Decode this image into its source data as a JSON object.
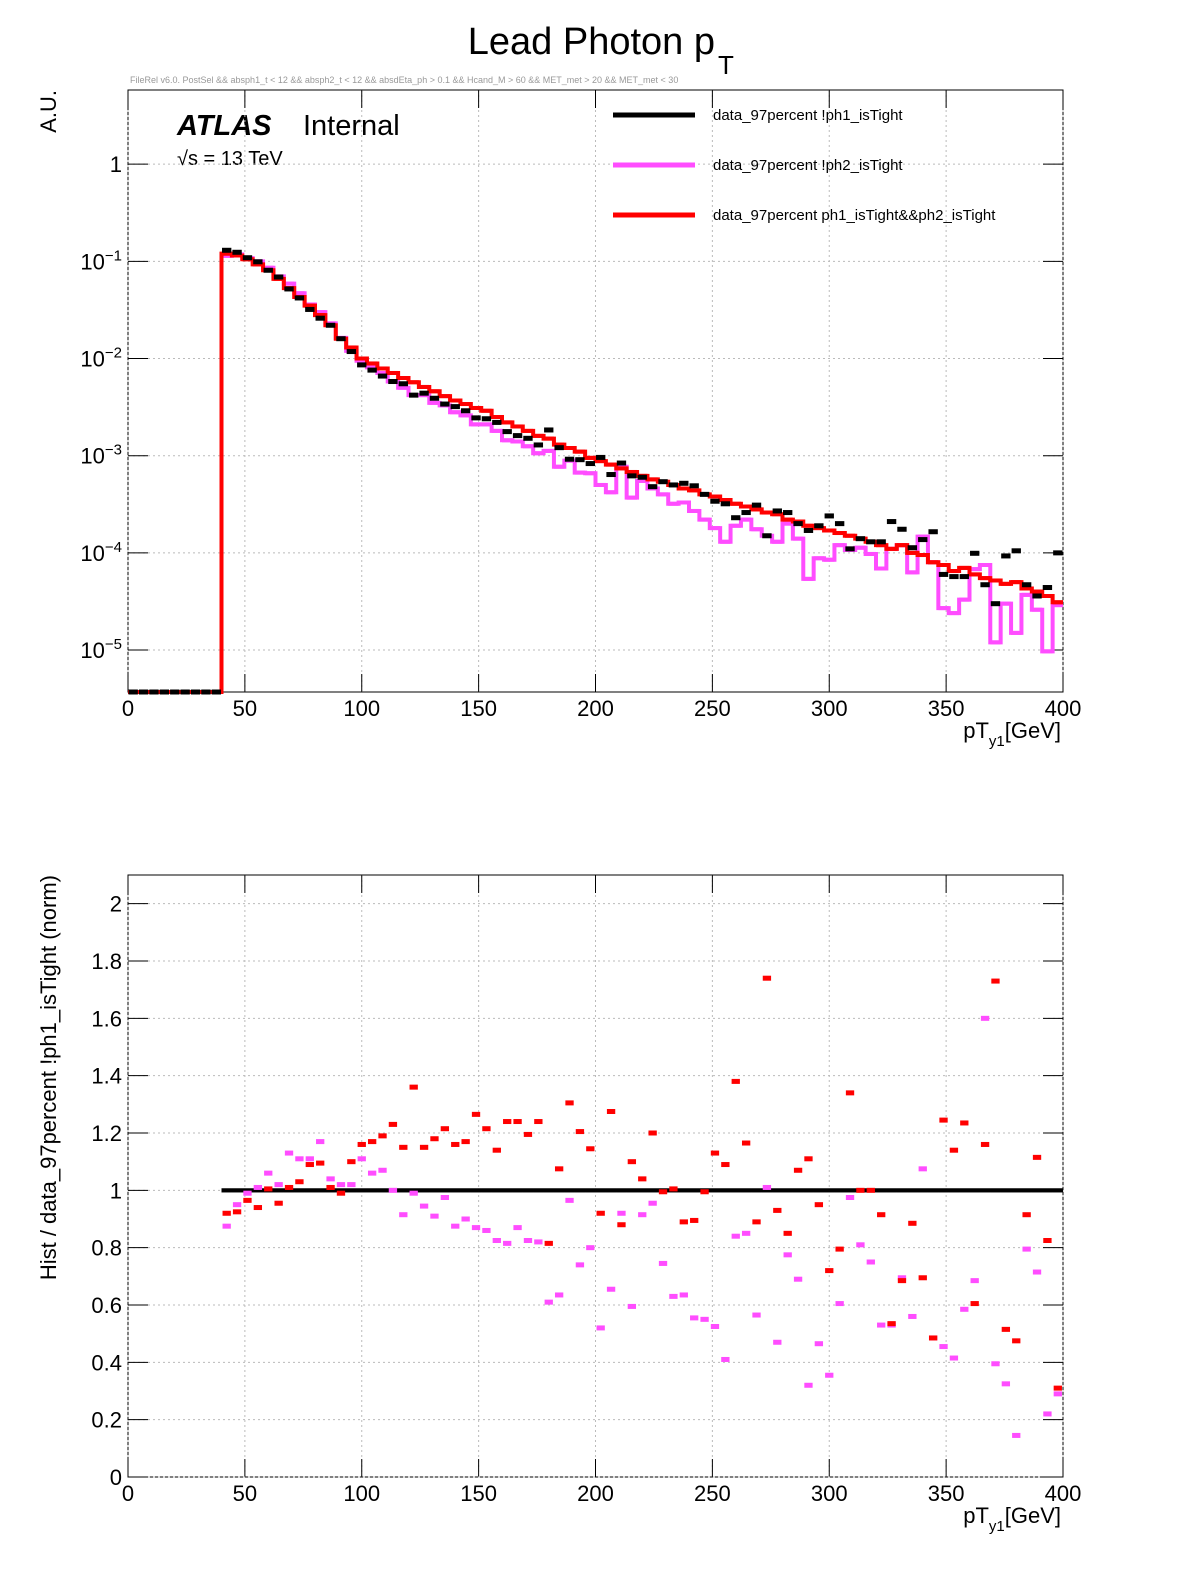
{
  "chart_data": [
    {
      "type": "histogram",
      "title": "Lead Photon p",
      "title_sub": "T",
      "subtitle": "FileRel v6.0. PostSel &&  absph1_t < 12 && absph2_t < 12 && absdEta_ph > 0.1 && Hcand_M > 60 && MET_met > 20 && MET_met < 30",
      "annotations": [
        "ATLAS",
        "Internal",
        "√s = 13 TeV"
      ],
      "ylabel": "A.U.",
      "xlabel": "pT",
      "xlabel_sub": "y1",
      "xlabel_unit": "[GeV]",
      "log_y": true,
      "grid": true,
      "legend": "top-right",
      "xlim": [
        0,
        400
      ],
      "xticks": [
        0,
        50,
        100,
        150,
        200,
        250,
        300,
        350,
        400
      ],
      "ylim": [
        3.7e-06,
        5.8
      ],
      "yticks": [
        {
          "value": 1e-05,
          "label": "10−5"
        },
        {
          "value": 0.0001,
          "label": "10−4"
        },
        {
          "value": 0.001,
          "label": "10−3"
        },
        {
          "value": 0.01,
          "label": "10−2"
        },
        {
          "value": 0.1,
          "label": "10−1"
        },
        1
      ],
      "bins": [
        0,
        4.44,
        8.89,
        13.33,
        17.78,
        22.22,
        26.67,
        31.11,
        35.56,
        40,
        44.44,
        48.89,
        53.33,
        57.78,
        62.22,
        66.67,
        71.11,
        75.56,
        80,
        84.44,
        88.89,
        93.33,
        97.78,
        102.22,
        106.67,
        111.11,
        115.56,
        120,
        124.44,
        128.89,
        133.33,
        137.78,
        142.22,
        146.67,
        151.11,
        155.56,
        160,
        164.44,
        168.89,
        173.33,
        177.78,
        182.22,
        186.67,
        191.11,
        195.56,
        200,
        204.44,
        208.89,
        213.33,
        217.78,
        222.22,
        226.67,
        231.11,
        235.56,
        240,
        244.44,
        248.89,
        253.33,
        257.78,
        262.22,
        266.67,
        271.11,
        275.56,
        280,
        284.44,
        288.89,
        293.33,
        297.78,
        302.22,
        306.67,
        311.11,
        315.56,
        320,
        324.44,
        328.89,
        333.33,
        337.78,
        342.22,
        346.67,
        351.11,
        355.56,
        360,
        364.44,
        368.89,
        373.33,
        377.78,
        382.22,
        386.67,
        391.11,
        395.56,
        400
      ],
      "series": [
        {
          "name": "data_97percent  !ph1_isTight",
          "color": "#000000",
          "style": "markers",
          "values": [
            0,
            0,
            0,
            0,
            0,
            0,
            0,
            0,
            0,
            0.13,
            0.124,
            0.109,
            0.099,
            0.081,
            0.069,
            0.052,
            0.042,
            0.032,
            0.026,
            0.022,
            0.016,
            0.0118,
            0.0086,
            0.0076,
            0.0066,
            0.0058,
            0.0055,
            0.0042,
            0.0044,
            0.0039,
            0.0034,
            0.0032,
            0.0029,
            0.00245,
            0.0024,
            0.0022,
            0.00177,
            0.00161,
            0.00151,
            0.00129,
            0.00184,
            0.00121,
            0.00092,
            0.00091,
            0.00083,
            0.00096,
            0.00064,
            0.00084,
            0.00062,
            0.0006,
            0.00048,
            0.00054,
            0.0005,
            0.00052,
            0.00049,
            0.0004,
            0.00034,
            0.00032,
            0.00023,
            0.00026,
            0.00031,
            0.00015,
            0.00027,
            0.00026,
            0.0002,
            0.00017,
            0.00019,
            0.00024,
            0.0002,
            0.00011,
            0.00014,
            0.00013,
            0.00013,
            0.00021,
            0.000175,
            0.000113,
            0.000137,
            0.000165,
            6e-05,
            5.7e-05,
            5.7e-05,
            9.9e-05,
            4.7e-05,
            3e-05,
            9.3e-05,
            0.000105,
            4.7e-05,
            3.6e-05,
            4.4e-05,
            0.0001
          ]
        },
        {
          "name": "data_97percent  !ph2_isTight",
          "color": "#ff4dff",
          "style": "step",
          "values": [
            0,
            0,
            0,
            0,
            0,
            0,
            0,
            0,
            0,
            0.114,
            0.118,
            0.108,
            0.1,
            0.086,
            0.07,
            0.059,
            0.047,
            0.036,
            0.03,
            0.023,
            0.0163,
            0.012,
            0.0095,
            0.0081,
            0.0071,
            0.0058,
            0.005,
            0.0042,
            0.0042,
            0.0035,
            0.0033,
            0.0028,
            0.0026,
            0.0021,
            0.0021,
            0.0018,
            0.00144,
            0.0014,
            0.00125,
            0.00106,
            0.00112,
            0.00077,
            0.00089,
            0.00067,
            0.00066,
            0.0005,
            0.00042,
            0.00077,
            0.00037,
            0.00055,
            0.00046,
            0.0004,
            0.00032,
            0.00033,
            0.00027,
            0.00022,
            0.00018,
            0.00013,
            0.00019,
            0.00022,
            0.000175,
            0.00015,
            0.00013,
            0.0002,
            0.00014,
            5.4e-05,
            8.8e-05,
            8.5e-05,
            0.00012,
            0.000107,
            0.000113,
            9.75e-05,
            6.9e-05,
            0.00011,
            0.00012,
            6.3e-05,
            0.000147,
            8e-05,
            2.7e-05,
            2.4e-05,
            3.3e-05,
            6.8e-05,
            7.5e-05,
            1.2e-05,
            3e-05,
            1.5e-05,
            3.7e-05,
            2.6e-05,
            9.7e-06,
            2.9e-05
          ]
        },
        {
          "name": "data_97percent  ph1_isTight&&ph2_isTight",
          "color": "#ff0000",
          "style": "step",
          "values": [
            0,
            0,
            0,
            0,
            0,
            0,
            0,
            0,
            0,
            0.12,
            0.115,
            0.105,
            0.093,
            0.081,
            0.066,
            0.053,
            0.043,
            0.035,
            0.028,
            0.022,
            0.016,
            0.013,
            0.01,
            0.0089,
            0.0079,
            0.0071,
            0.0063,
            0.0057,
            0.0051,
            0.0046,
            0.0041,
            0.0037,
            0.0034,
            0.0031,
            0.0029,
            0.0025,
            0.0022,
            0.002,
            0.0018,
            0.0016,
            0.0015,
            0.0013,
            0.0012,
            0.0011,
            0.00095,
            0.00088,
            0.00081,
            0.00074,
            0.00068,
            0.00062,
            0.00057,
            0.00054,
            0.0005,
            0.00046,
            0.00044,
            0.0004,
            0.00038,
            0.00035,
            0.00032,
            0.0003,
            0.00028,
            0.00026,
            0.00025,
            0.00022,
            0.00021,
            0.00019,
            0.00018,
            0.00017,
            0.00016,
            0.00015,
            0.00014,
            0.00013,
            0.00012,
            0.00011,
            0.00012,
            0.0001,
            9.5e-05,
            8e-05,
            7.5e-05,
            6.5e-05,
            7e-05,
            6e-05,
            5.5e-05,
            5.2e-05,
            4.8e-05,
            5e-05,
            4.3e-05,
            4e-05,
            3.6e-05,
            3.1e-05
          ]
        }
      ]
    },
    {
      "type": "histogram",
      "ylabel": "Hist / data_97percent  !ph1_isTight (norm)",
      "xlabel": "pT",
      "xlabel_sub": "y1",
      "xlabel_unit": "[GeV]",
      "log_y": false,
      "grid": true,
      "xlim": [
        0,
        400
      ],
      "xticks": [
        0,
        50,
        100,
        150,
        200,
        250,
        300,
        350,
        400
      ],
      "ylim": [
        0,
        2.1
      ],
      "yticks": [
        0,
        0.2,
        0.4,
        0.6,
        0.8,
        1,
        1.2,
        1.4,
        1.6,
        1.8,
        2
      ],
      "bins": [
        0,
        4.44,
        8.89,
        13.33,
        17.78,
        22.22,
        26.67,
        31.11,
        35.56,
        40,
        44.44,
        48.89,
        53.33,
        57.78,
        62.22,
        66.67,
        71.11,
        75.56,
        80,
        84.44,
        88.89,
        93.33,
        97.78,
        102.22,
        106.67,
        111.11,
        115.56,
        120,
        124.44,
        128.89,
        133.33,
        137.78,
        142.22,
        146.67,
        151.11,
        155.56,
        160,
        164.44,
        168.89,
        173.33,
        177.78,
        182.22,
        186.67,
        191.11,
        195.56,
        200,
        204.44,
        208.89,
        213.33,
        217.78,
        222.22,
        226.67,
        231.11,
        235.56,
        240,
        244.44,
        248.89,
        253.33,
        257.78,
        262.22,
        266.67,
        271.11,
        275.56,
        280,
        284.44,
        288.89,
        293.33,
        297.78,
        302.22,
        306.67,
        311.11,
        315.56,
        320,
        324.44,
        328.89,
        333.33,
        337.78,
        342.22,
        346.67,
        351.11,
        355.56,
        360,
        364.44,
        368.89,
        373.33,
        377.78,
        382.22,
        386.67,
        391.11,
        395.56,
        400
      ],
      "series": [
        {
          "color": "#000000",
          "style": "step",
          "values": [
            null,
            null,
            null,
            null,
            null,
            null,
            null,
            null,
            null,
            1,
            1,
            1,
            1,
            1,
            1,
            1,
            1,
            1,
            1,
            1,
            1,
            1,
            1,
            1,
            1,
            1,
            1,
            1,
            1,
            1,
            1,
            1,
            1,
            1,
            1,
            1,
            1,
            1,
            1,
            1,
            1,
            1,
            1,
            1,
            1,
            1,
            1,
            1,
            1,
            1,
            1,
            1,
            1,
            1,
            1,
            1,
            1,
            1,
            1,
            1,
            1,
            1,
            1,
            1,
            1,
            1,
            1,
            1,
            1,
            1,
            1,
            1,
            1,
            1,
            1,
            1,
            1,
            1,
            1,
            1,
            1,
            1,
            1,
            1,
            1,
            1,
            1,
            1,
            1,
            1
          ]
        },
        {
          "color": "#ff4dff",
          "style": "markers",
          "values": [
            null,
            null,
            null,
            null,
            null,
            null,
            null,
            null,
            null,
            0.875,
            0.95,
            0.99,
            1.01,
            1.06,
            1.02,
            1.13,
            1.11,
            1.11,
            1.17,
            1.04,
            1.02,
            1.02,
            1.11,
            1.06,
            1.07,
            1.0,
            0.915,
            0.99,
            0.945,
            0.91,
            0.975,
            0.875,
            0.9,
            0.87,
            0.86,
            0.825,
            0.815,
            0.87,
            0.825,
            0.82,
            0.61,
            0.635,
            0.965,
            0.74,
            0.8,
            0.52,
            0.655,
            0.92,
            0.595,
            0.915,
            0.955,
            0.745,
            0.63,
            0.635,
            0.555,
            0.55,
            0.525,
            0.41,
            0.84,
            0.85,
            0.565,
            1.01,
            0.47,
            0.775,
            0.69,
            0.32,
            0.465,
            0.355,
            0.605,
            0.975,
            0.81,
            0.75,
            0.53,
            0.53,
            0.695,
            0.56,
            1.075,
            0.485,
            0.455,
            0.415,
            0.585,
            0.685,
            1.6,
            0.395,
            0.325,
            0.145,
            0.795,
            0.715,
            0.22,
            0.29
          ]
        },
        {
          "color": "#ff0000",
          "style": "markers",
          "values": [
            null,
            null,
            null,
            null,
            null,
            null,
            null,
            null,
            null,
            0.92,
            0.925,
            0.965,
            0.94,
            1.005,
            0.955,
            1.01,
            1.03,
            1.09,
            1.095,
            1.01,
            0.99,
            1.1,
            1.16,
            1.17,
            1.19,
            1.23,
            1.15,
            1.36,
            1.15,
            1.18,
            1.215,
            1.16,
            1.17,
            1.265,
            1.215,
            1.14,
            1.24,
            1.24,
            1.195,
            1.24,
            0.815,
            1.075,
            1.305,
            1.205,
            1.145,
            0.92,
            1.275,
            0.88,
            1.1,
            1.04,
            1.2,
            0.995,
            1.005,
            0.89,
            0.895,
            0.995,
            1.13,
            1.09,
            1.38,
            1.165,
            0.89,
            1.74,
            0.93,
            0.85,
            1.07,
            1.11,
            0.95,
            0.72,
            0.795,
            1.34,
            1.0,
            1.0,
            0.915,
            0.535,
            0.685,
            0.885,
            0.695,
            0.485,
            1.245,
            1.14,
            1.235,
            0.605,
            1.16,
            1.73,
            0.515,
            0.475,
            0.915,
            1.115,
            0.825,
            0.31
          ]
        }
      ]
    }
  ]
}
